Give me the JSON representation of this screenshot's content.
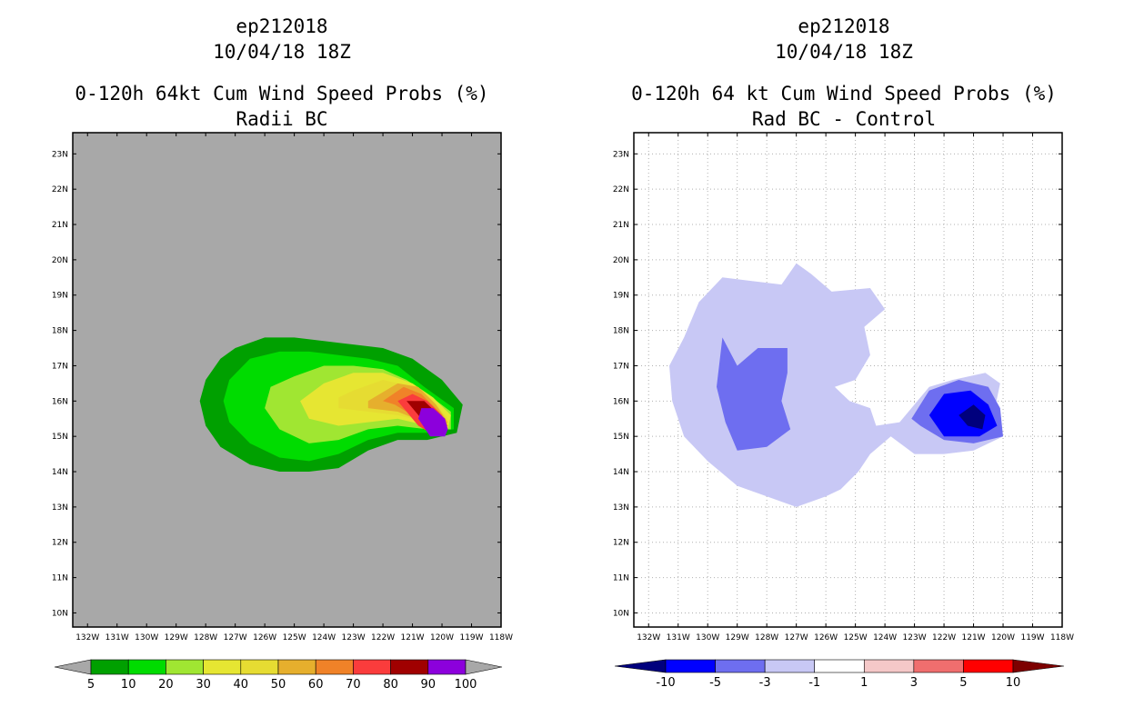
{
  "chart_data": [
    {
      "type": "heatmap",
      "title": [
        "ep212018",
        "10/04/18 18Z",
        "0-120h 64kt Cum Wind Speed Probs (%)",
        "Radii BC"
      ],
      "xlabel": "",
      "ylabel": "",
      "xticks": [
        "132W",
        "131W",
        "130W",
        "129W",
        "128W",
        "127W",
        "126W",
        "125W",
        "124W",
        "123W",
        "122W",
        "121W",
        "120W",
        "119W",
        "118W"
      ],
      "yticks": [
        "10N",
        "11N",
        "12N",
        "13N",
        "14N",
        "15N",
        "16N",
        "17N",
        "18N",
        "19N",
        "20N",
        "21N",
        "22N",
        "23N"
      ],
      "xlim": [
        -132.5,
        -118.0
      ],
      "ylim": [
        9.6,
        23.6
      ],
      "grid": false,
      "background": "#a8a8a8",
      "contour_levels": [
        5,
        10,
        20,
        30,
        40,
        50,
        60,
        70,
        80,
        90,
        100
      ],
      "colorbar_labels": [
        "5",
        "10",
        "20",
        "30",
        "40",
        "50",
        "60",
        "70",
        "80",
        "90",
        "100"
      ],
      "colorbar_colors": [
        "#a8a8a8",
        "#00a000",
        "#00dc00",
        "#a0e632",
        "#e6e632",
        "#e6dc32",
        "#e6af2d",
        "#f08228",
        "#fa3c3c",
        "#a00000",
        "#8c00dc",
        "#a8a8a8"
      ],
      "contours": [
        {
          "level": 10,
          "color": "#00a000",
          "points": [
            [
              -127,
              17.5
            ],
            [
              -126,
              17.8
            ],
            [
              -125,
              17.8
            ],
            [
              -124,
              17.7
            ],
            [
              -123,
              17.6
            ],
            [
              -122,
              17.5
            ],
            [
              -121,
              17.2
            ],
            [
              -120,
              16.6
            ],
            [
              -119.3,
              15.9
            ],
            [
              -119.5,
              15.1
            ],
            [
              -120.5,
              14.9
            ],
            [
              -121.5,
              14.9
            ],
            [
              -122.5,
              14.6
            ],
            [
              -123.5,
              14.1
            ],
            [
              -124.5,
              14.0
            ],
            [
              -125.5,
              14.0
            ],
            [
              -126.5,
              14.2
            ],
            [
              -127.5,
              14.7
            ],
            [
              -128,
              15.3
            ],
            [
              -128.2,
              16.0
            ],
            [
              -128,
              16.6
            ],
            [
              -127.5,
              17.2
            ]
          ]
        },
        {
          "level": 20,
          "color": "#00dc00",
          "points": [
            [
              -126.5,
              17.2
            ],
            [
              -125.5,
              17.4
            ],
            [
              -124.5,
              17.4
            ],
            [
              -123.5,
              17.3
            ],
            [
              -122.5,
              17.2
            ],
            [
              -121.5,
              17.0
            ],
            [
              -120.6,
              16.4
            ],
            [
              -119.6,
              15.8
            ],
            [
              -119.6,
              15.2
            ],
            [
              -120.5,
              15.1
            ],
            [
              -121.5,
              15.1
            ],
            [
              -122.5,
              14.9
            ],
            [
              -123.5,
              14.5
            ],
            [
              -124.5,
              14.3
            ],
            [
              -125.5,
              14.4
            ],
            [
              -126.5,
              14.8
            ],
            [
              -127.2,
              15.4
            ],
            [
              -127.4,
              16.0
            ],
            [
              -127.2,
              16.6
            ]
          ]
        },
        {
          "level": 30,
          "color": "#a0e632",
          "points": [
            [
              -125,
              16.7
            ],
            [
              -124,
              17.0
            ],
            [
              -123,
              17.0
            ],
            [
              -122,
              16.9
            ],
            [
              -121.2,
              16.6
            ],
            [
              -120.5,
              16.2
            ],
            [
              -119.7,
              15.7
            ],
            [
              -119.7,
              15.2
            ],
            [
              -120.5,
              15.2
            ],
            [
              -121.5,
              15.3
            ],
            [
              -122.5,
              15.2
            ],
            [
              -123.5,
              14.9
            ],
            [
              -124.5,
              14.8
            ],
            [
              -125.5,
              15.2
            ],
            [
              -126,
              15.8
            ],
            [
              -125.8,
              16.4
            ]
          ]
        },
        {
          "level": 40,
          "color": "#e6e632",
          "points": [
            [
              -124,
              16.5
            ],
            [
              -123,
              16.8
            ],
            [
              -122,
              16.8
            ],
            [
              -121,
              16.5
            ],
            [
              -120.3,
              16.1
            ],
            [
              -119.7,
              15.6
            ],
            [
              -119.8,
              15.2
            ],
            [
              -120.5,
              15.3
            ],
            [
              -121.5,
              15.5
            ],
            [
              -122.5,
              15.4
            ],
            [
              -123.5,
              15.3
            ],
            [
              -124.5,
              15.5
            ],
            [
              -124.8,
              16.0
            ]
          ]
        },
        {
          "level": 50,
          "color": "#e6dc32",
          "points": [
            [
              -123,
              16.3
            ],
            [
              -122,
              16.6
            ],
            [
              -121,
              16.4
            ],
            [
              -120.3,
              16.0
            ],
            [
              -119.8,
              15.5
            ],
            [
              -119.9,
              15.2
            ],
            [
              -120.5,
              15.4
            ],
            [
              -121.5,
              15.6
            ],
            [
              -122.5,
              15.7
            ],
            [
              -123.5,
              15.8
            ],
            [
              -123.5,
              16.1
            ]
          ]
        },
        {
          "level": 60,
          "color": "#e6af2d",
          "points": [
            [
              -122.5,
              16.0
            ],
            [
              -121.5,
              16.5
            ],
            [
              -120.8,
              16.4
            ],
            [
              -120.2,
              15.9
            ],
            [
              -119.8,
              15.4
            ],
            [
              -120,
              15.2
            ],
            [
              -120.6,
              15.4
            ],
            [
              -121.5,
              15.7
            ],
            [
              -122.5,
              15.8
            ]
          ]
        },
        {
          "level": 70,
          "color": "#f08228",
          "points": [
            [
              -122,
              16.0
            ],
            [
              -121.3,
              16.4
            ],
            [
              -120.7,
              16.2
            ],
            [
              -120.1,
              15.7
            ],
            [
              -119.8,
              15.3
            ],
            [
              -120.2,
              15.1
            ],
            [
              -120.8,
              15.5
            ],
            [
              -121.6,
              15.9
            ]
          ]
        },
        {
          "level": 80,
          "color": "#fa3c3c",
          "points": [
            [
              -121.5,
              16.0
            ],
            [
              -121,
              16.2
            ],
            [
              -120.5,
              16.0
            ],
            [
              -120,
              15.6
            ],
            [
              -119.8,
              15.2
            ],
            [
              -120.2,
              15.0
            ],
            [
              -120.8,
              15.3
            ],
            [
              -121.2,
              15.7
            ]
          ]
        },
        {
          "level": 90,
          "color": "#a00000",
          "points": [
            [
              -121.2,
              16.0
            ],
            [
              -120.6,
              16.0
            ],
            [
              -120.1,
              15.6
            ],
            [
              -119.8,
              15.2
            ],
            [
              -120.2,
              15.0
            ],
            [
              -120.7,
              15.5
            ],
            [
              -121,
              15.8
            ]
          ]
        },
        {
          "level": 100,
          "color": "#8c00dc",
          "points": [
            [
              -120.7,
              15.8
            ],
            [
              -120.3,
              15.8
            ],
            [
              -119.9,
              15.5
            ],
            [
              -119.8,
              15.2
            ],
            [
              -119.9,
              15.0
            ],
            [
              -120.4,
              15.0
            ],
            [
              -120.8,
              15.5
            ]
          ]
        }
      ]
    },
    {
      "type": "heatmap",
      "title": [
        "ep212018",
        "10/04/18 18Z",
        "0-120h 64 kt Cum Wind Speed Probs (%)",
        "Rad BC - Control"
      ],
      "xlabel": "",
      "ylabel": "",
      "xticks": [
        "132W",
        "131W",
        "130W",
        "129W",
        "128W",
        "127W",
        "126W",
        "125W",
        "124W",
        "123W",
        "122W",
        "121W",
        "120W",
        "119W",
        "118W"
      ],
      "yticks": [
        "10N",
        "11N",
        "12N",
        "13N",
        "14N",
        "15N",
        "16N",
        "17N",
        "18N",
        "19N",
        "20N",
        "21N",
        "22N",
        "23N"
      ],
      "xlim": [
        -132.5,
        -118.0
      ],
      "ylim": [
        9.6,
        23.6
      ],
      "grid": true,
      "background": "#ffffff",
      "contour_levels": [
        -10,
        -5,
        -3,
        -1,
        1,
        3,
        5,
        10
      ],
      "colorbar_labels": [
        "-10",
        "-5",
        "-3",
        "-1",
        "1",
        "3",
        "5",
        "10"
      ],
      "colorbar_colors": [
        "#00007d",
        "#0000ff",
        "#6e6ef0",
        "#c8c8f5",
        "#ffffff",
        "#f5c8c8",
        "#f06e6e",
        "#ff0000",
        "#7d0000"
      ],
      "contours": [
        {
          "level": -1,
          "color": "#c8c8f5",
          "points": [
            [
              -128.5,
              19.4
            ],
            [
              -127.5,
              19.3
            ],
            [
              -127,
              19.9
            ],
            [
              -126.5,
              19.6
            ],
            [
              -125.8,
              19.1
            ],
            [
              -124.5,
              19.2
            ],
            [
              -124,
              18.6
            ],
            [
              -124.7,
              18.1
            ],
            [
              -124.5,
              17.3
            ],
            [
              -125,
              16.6
            ],
            [
              -125.7,
              16.4
            ],
            [
              -125.2,
              16.0
            ],
            [
              -124.5,
              15.8
            ],
            [
              -124.3,
              15.3
            ],
            [
              -123.5,
              15.4
            ],
            [
              -122.5,
              16.4
            ],
            [
              -121.7,
              16.6
            ],
            [
              -120.6,
              16.8
            ],
            [
              -120.1,
              16.5
            ],
            [
              -120.3,
              15.7
            ],
            [
              -120.0,
              15.0
            ],
            [
              -121,
              14.6
            ],
            [
              -122,
              14.5
            ],
            [
              -123,
              14.5
            ],
            [
              -123.8,
              15.0
            ],
            [
              -124.5,
              14.5
            ],
            [
              -124.9,
              14.0
            ],
            [
              -125.5,
              13.5
            ],
            [
              -126,
              13.3
            ],
            [
              -127,
              13.0
            ],
            [
              -128,
              13.3
            ],
            [
              -129,
              13.6
            ],
            [
              -130,
              14.3
            ],
            [
              -130.8,
              15.0
            ],
            [
              -131.2,
              16.0
            ],
            [
              -131.3,
              17.0
            ],
            [
              -130.8,
              17.8
            ],
            [
              -130.3,
              18.8
            ],
            [
              -129.5,
              19.5
            ]
          ]
        },
        {
          "level": -3,
          "color": "#6e6ef0",
          "points": [
            [
              -129.5,
              17.8
            ],
            [
              -129,
              17.0
            ],
            [
              -128.3,
              17.5
            ],
            [
              -127.3,
              17.5
            ],
            [
              -127.3,
              16.8
            ],
            [
              -127.5,
              16.0
            ],
            [
              -127.2,
              15.2
            ],
            [
              -128,
              14.7
            ],
            [
              -129,
              14.6
            ],
            [
              -129.4,
              15.4
            ],
            [
              -129.7,
              16.4
            ]
          ]
        },
        {
          "level": -3,
          "color": "#6e6ef0",
          "points": [
            [
              -123.1,
              15.5
            ],
            [
              -122.5,
              16.3
            ],
            [
              -121.5,
              16.6
            ],
            [
              -120.5,
              16.4
            ],
            [
              -120.1,
              15.8
            ],
            [
              -120.0,
              15.0
            ],
            [
              -121,
              14.8
            ],
            [
              -122,
              14.9
            ],
            [
              -122.8,
              15.3
            ]
          ]
        },
        {
          "level": -5,
          "color": "#0000ff",
          "points": [
            [
              -122.5,
              15.6
            ],
            [
              -122,
              16.2
            ],
            [
              -121.1,
              16.3
            ],
            [
              -120.5,
              15.9
            ],
            [
              -120.2,
              15.3
            ],
            [
              -120.8,
              15.0
            ],
            [
              -122,
              15.0
            ]
          ]
        },
        {
          "level": -10,
          "color": "#00007d",
          "points": [
            [
              -121.5,
              15.6
            ],
            [
              -121.0,
              15.9
            ],
            [
              -120.6,
              15.6
            ],
            [
              -120.7,
              15.2
            ],
            [
              -121.2,
              15.3
            ]
          ]
        }
      ]
    }
  ]
}
